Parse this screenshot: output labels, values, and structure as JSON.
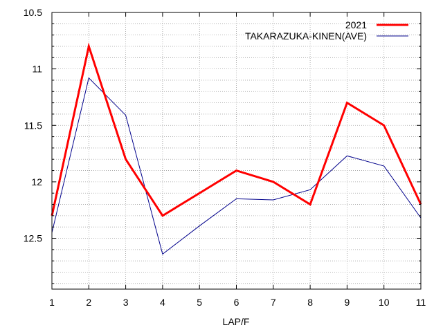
{
  "chart_data": {
    "type": "line",
    "title": "",
    "xlabel": "LAP/F",
    "ylabel": "",
    "x": [
      1,
      2,
      3,
      4,
      5,
      6,
      7,
      8,
      9,
      10,
      11
    ],
    "xlim": [
      1,
      11
    ],
    "ylim": [
      12.95,
      10.5
    ],
    "y_inverted": true,
    "yticks": [
      10.5,
      11,
      11.5,
      12,
      12.5
    ],
    "yticks_labels": [
      "10.5",
      "11",
      "11.5",
      "12",
      "12.5"
    ],
    "grid": true,
    "legend_position": "top-right",
    "series": [
      {
        "name": "2021",
        "color": "#ff0000",
        "values": [
          12.3,
          10.8,
          11.8,
          12.3,
          12.1,
          11.9,
          12.0,
          12.2,
          11.3,
          11.5,
          12.2
        ]
      },
      {
        "name": "TAKARAZUKA-KINEN(AVE)",
        "color": "#00008b",
        "values": [
          12.45,
          11.08,
          11.41,
          12.64,
          12.39,
          12.15,
          12.16,
          12.07,
          11.77,
          11.86,
          12.32
        ]
      }
    ]
  }
}
